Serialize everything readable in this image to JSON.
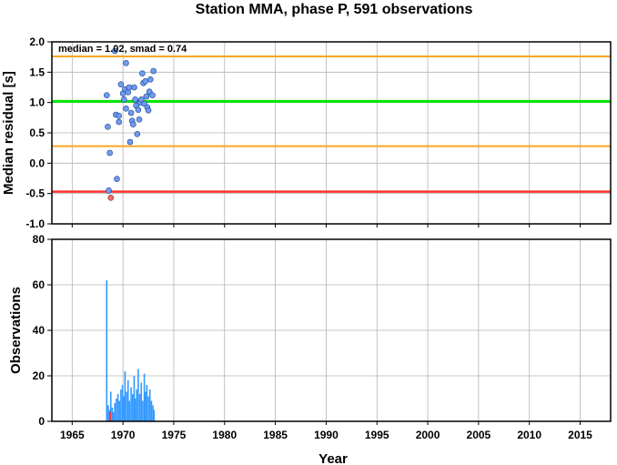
{
  "chart_data": {
    "title": "Station MMA, phase P, 591 observations",
    "xlabel": "Year",
    "x_ticks": [
      1965,
      1970,
      1975,
      1980,
      1985,
      1990,
      1995,
      2000,
      2005,
      2010,
      2015
    ],
    "xlim": [
      1963,
      2018
    ],
    "grid": true,
    "colors": {
      "median_line": "#00e600",
      "smad_lines": "#f5a623",
      "reference_line": "#ff3030",
      "point_fill": "#6f9cf2",
      "outlier_fill": "#f26a6a",
      "bars": "#3399ff",
      "bar_outlier": "#ff3030"
    },
    "top_panel": {
      "type": "scatter",
      "ylabel": "Median residual [s]",
      "ylim": [
        -1.0,
        2.0
      ],
      "y_ticks": [
        "2.0",
        "1.5",
        "1.0",
        "0.5",
        "0.0",
        "-0.5",
        "-1.0"
      ],
      "annotation": "median = 1.02, smad = 0.74",
      "hlines": [
        {
          "y": 1.76,
          "role": "median + smad"
        },
        {
          "y": 1.02,
          "role": "median"
        },
        {
          "y": 0.28,
          "role": "median - smad"
        },
        {
          "y": -0.47,
          "role": "reference"
        }
      ],
      "points": [
        {
          "x": 1968.4,
          "y": 1.12
        },
        {
          "x": 1968.5,
          "y": 0.6
        },
        {
          "x": 1968.7,
          "y": 0.17
        },
        {
          "x": 1968.6,
          "y": -0.45
        },
        {
          "x": 1969.2,
          "y": 1.85
        },
        {
          "x": 1969.3,
          "y": 0.8
        },
        {
          "x": 1969.4,
          "y": -0.26
        },
        {
          "x": 1969.6,
          "y": 0.78
        },
        {
          "x": 1969.6,
          "y": 0.68
        },
        {
          "x": 1969.8,
          "y": 1.3
        },
        {
          "x": 1970.0,
          "y": 1.15
        },
        {
          "x": 1970.1,
          "y": 1.05
        },
        {
          "x": 1970.2,
          "y": 1.22
        },
        {
          "x": 1970.3,
          "y": 0.9
        },
        {
          "x": 1970.3,
          "y": 1.65
        },
        {
          "x": 1970.5,
          "y": 1.17
        },
        {
          "x": 1970.6,
          "y": 1.25
        },
        {
          "x": 1970.7,
          "y": 0.35
        },
        {
          "x": 1970.8,
          "y": 0.83
        },
        {
          "x": 1970.9,
          "y": 0.7
        },
        {
          "x": 1971.0,
          "y": 0.64
        },
        {
          "x": 1971.1,
          "y": 1.25
        },
        {
          "x": 1971.2,
          "y": 1.05
        },
        {
          "x": 1971.3,
          "y": 0.95
        },
        {
          "x": 1971.4,
          "y": 0.48
        },
        {
          "x": 1971.5,
          "y": 0.88
        },
        {
          "x": 1971.6,
          "y": 0.72
        },
        {
          "x": 1971.7,
          "y": 1.0
        },
        {
          "x": 1971.8,
          "y": 1.05
        },
        {
          "x": 1971.9,
          "y": 1.48
        },
        {
          "x": 1972.0,
          "y": 1.32
        },
        {
          "x": 1972.1,
          "y": 0.98
        },
        {
          "x": 1972.2,
          "y": 1.35
        },
        {
          "x": 1972.3,
          "y": 1.1
        },
        {
          "x": 1972.4,
          "y": 0.92
        },
        {
          "x": 1972.5,
          "y": 0.87
        },
        {
          "x": 1972.6,
          "y": 1.18
        },
        {
          "x": 1972.7,
          "y": 1.38
        },
        {
          "x": 1972.9,
          "y": 1.12
        },
        {
          "x": 1973.0,
          "y": 1.52
        }
      ],
      "outliers": [
        {
          "x": 1968.8,
          "y": -0.57
        }
      ]
    },
    "bottom_panel": {
      "type": "bar",
      "ylabel": "Observations",
      "ylim": [
        0,
        80
      ],
      "y_ticks": [
        "80",
        "60",
        "40",
        "20",
        "0"
      ],
      "bars": [
        {
          "x": 1968.4,
          "y": 62
        },
        {
          "x": 1968.55,
          "y": 7
        },
        {
          "x": 1968.65,
          "y": 5
        },
        {
          "x": 1968.8,
          "y": 13
        },
        {
          "x": 1968.95,
          "y": 6
        },
        {
          "x": 1969.05,
          "y": 4
        },
        {
          "x": 1969.2,
          "y": 8
        },
        {
          "x": 1969.35,
          "y": 10
        },
        {
          "x": 1969.5,
          "y": 12
        },
        {
          "x": 1969.65,
          "y": 9
        },
        {
          "x": 1969.8,
          "y": 14
        },
        {
          "x": 1969.95,
          "y": 16
        },
        {
          "x": 1970.1,
          "y": 11
        },
        {
          "x": 1970.2,
          "y": 22
        },
        {
          "x": 1970.35,
          "y": 13
        },
        {
          "x": 1970.5,
          "y": 18
        },
        {
          "x": 1970.65,
          "y": 9
        },
        {
          "x": 1970.8,
          "y": 15
        },
        {
          "x": 1970.95,
          "y": 12
        },
        {
          "x": 1971.1,
          "y": 20
        },
        {
          "x": 1971.2,
          "y": 10
        },
        {
          "x": 1971.35,
          "y": 14
        },
        {
          "x": 1971.5,
          "y": 23
        },
        {
          "x": 1971.65,
          "y": 12
        },
        {
          "x": 1971.8,
          "y": 17
        },
        {
          "x": 1971.95,
          "y": 9
        },
        {
          "x": 1972.1,
          "y": 21
        },
        {
          "x": 1972.2,
          "y": 13
        },
        {
          "x": 1972.35,
          "y": 16
        },
        {
          "x": 1972.5,
          "y": 11
        },
        {
          "x": 1972.65,
          "y": 14
        },
        {
          "x": 1972.8,
          "y": 9
        },
        {
          "x": 1972.95,
          "y": 7
        },
        {
          "x": 1973.05,
          "y": 5
        }
      ],
      "outlier_bars": [
        {
          "x": 1968.75,
          "y": 4
        }
      ]
    }
  }
}
